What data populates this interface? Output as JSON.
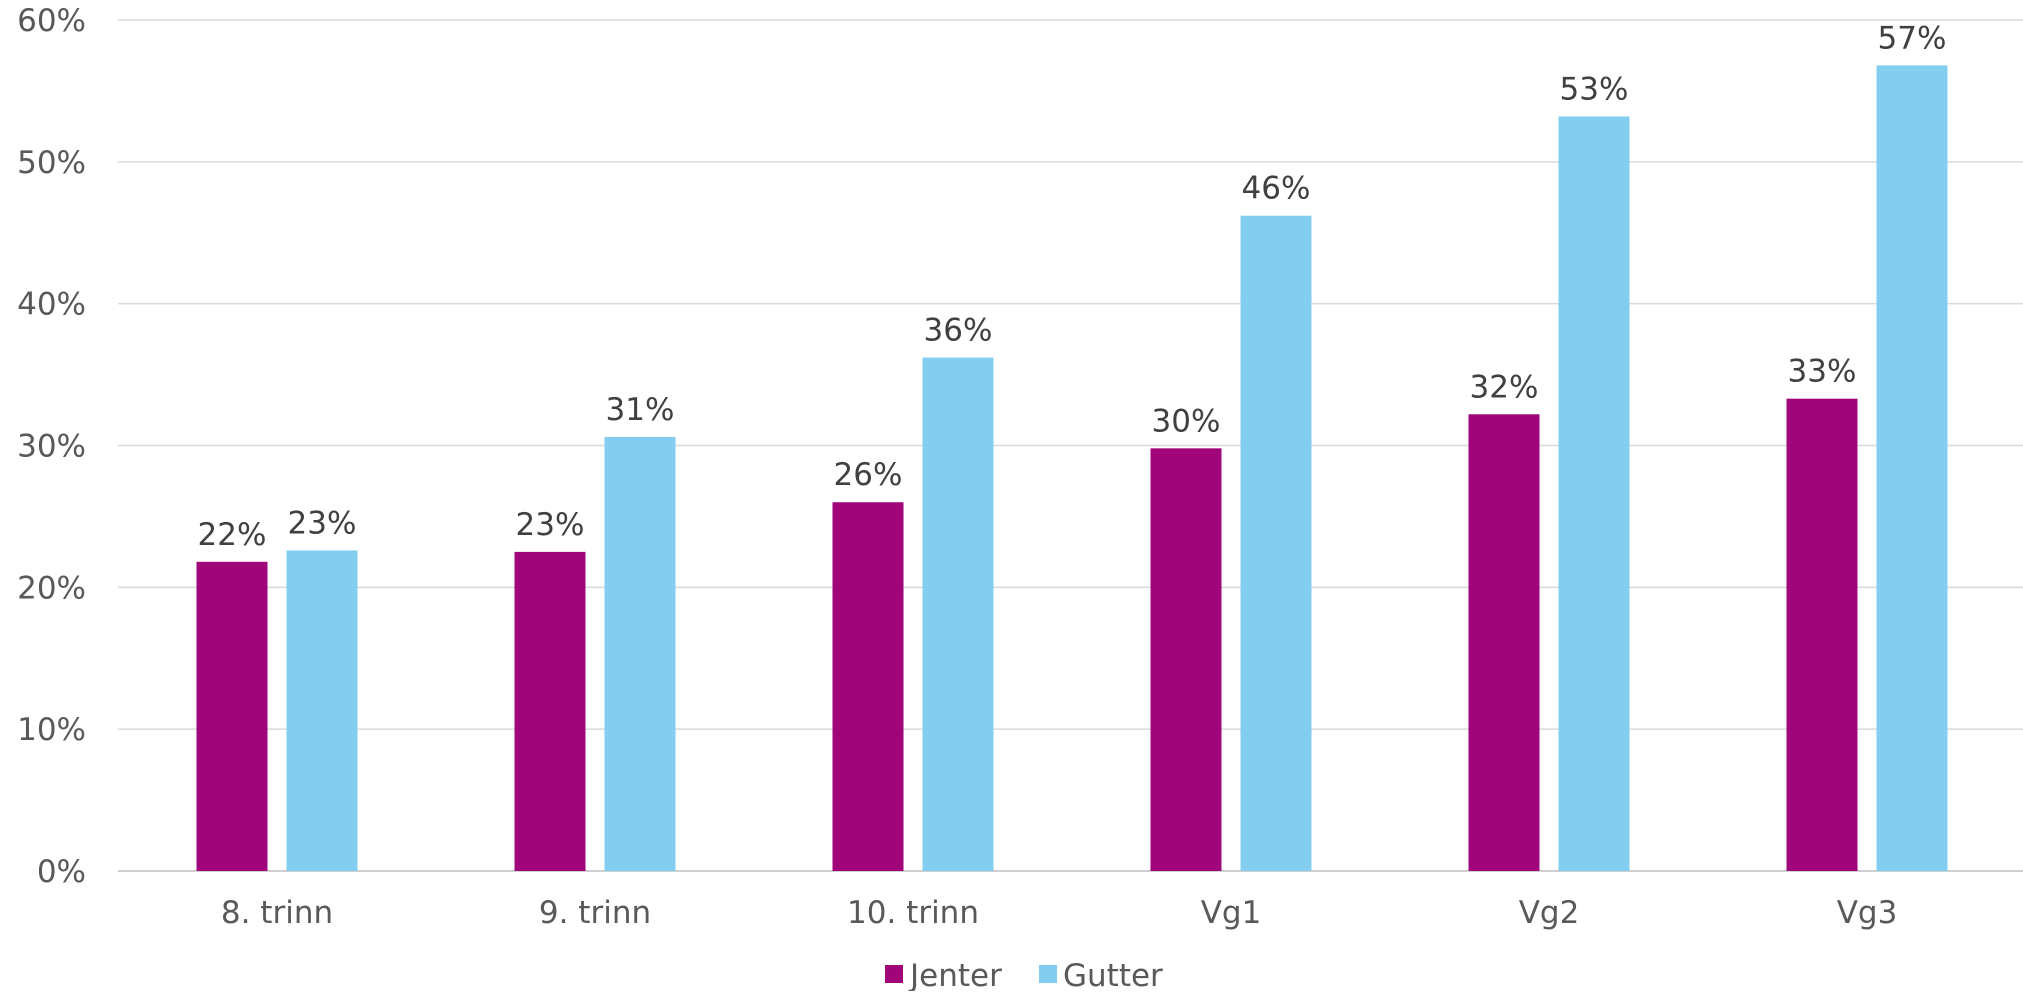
{
  "chart_data": {
    "type": "bar",
    "categories": [
      "8. trinn",
      "9. trinn",
      "10. trinn",
      "Vg1",
      "Vg2",
      "Vg3"
    ],
    "series": [
      {
        "name": "Jenter",
        "color": "#A0057A",
        "values": [
          21.8,
          22.5,
          26.0,
          29.8,
          32.2,
          33.3
        ],
        "labels": [
          "22%",
          "23%",
          "26%",
          "30%",
          "32%",
          "33%"
        ]
      },
      {
        "name": "Gutter",
        "color": "#82CDF0",
        "values": [
          22.6,
          30.6,
          36.2,
          46.2,
          53.2,
          56.8
        ],
        "labels": [
          "23%",
          "31%",
          "36%",
          "46%",
          "53%",
          "57%"
        ]
      }
    ],
    "ylim": [
      0,
      60
    ],
    "yticks": [
      "0%",
      "10%",
      "20%",
      "30%",
      "40%",
      "50%",
      "60%"
    ],
    "grid": true,
    "legend": "bottom-center",
    "title": "",
    "xlabel": "",
    "ylabel": ""
  }
}
